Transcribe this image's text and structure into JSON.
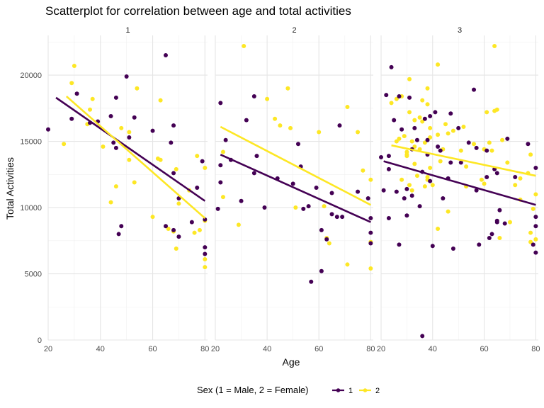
{
  "chart_data": {
    "type": "scatter",
    "title": "Scatterplot for correlation between age and total activities",
    "xlabel": "Age",
    "ylabel": "Total Activities",
    "xlim": [
      20,
      81
    ],
    "ylim": [
      0,
      23000
    ],
    "x_ticks": [
      20,
      40,
      60,
      80
    ],
    "y_ticks": [
      0,
      5000,
      10000,
      15000,
      20000
    ],
    "grid": true,
    "legend": {
      "title": "Sex (1 = Male, 2 = Female)",
      "position": "bottom",
      "entries": [
        {
          "label": "1",
          "color": "#440154"
        },
        {
          "label": "2",
          "color": "#fde725"
        }
      ]
    },
    "series_colors": {
      "1": "#440154",
      "2": "#fde725"
    },
    "panels": [
      {
        "label": "1",
        "points": {
          "1": [
            [
              20,
              15900
            ],
            [
              29,
              16700
            ],
            [
              31,
              18600
            ],
            [
              36,
              16400
            ],
            [
              39,
              16500
            ],
            [
              44,
              16900
            ],
            [
              45,
              14900
            ],
            [
              46,
              18300
            ],
            [
              46,
              14500
            ],
            [
              47,
              8000
            ],
            [
              48,
              8600
            ],
            [
              50,
              19900
            ],
            [
              51,
              15300
            ],
            [
              53,
              16800
            ],
            [
              60,
              15800
            ],
            [
              65,
              21500
            ],
            [
              65,
              8600
            ],
            [
              67,
              14900
            ],
            [
              68,
              16200
            ],
            [
              68,
              12600
            ],
            [
              68,
              8300
            ],
            [
              70,
              10700
            ],
            [
              70,
              7800
            ],
            [
              75,
              8900
            ],
            [
              77,
              11500
            ],
            [
              79,
              13500
            ],
            [
              80,
              9100
            ],
            [
              80,
              7000
            ],
            [
              80,
              6500
            ]
          ],
          "2": [
            [
              26,
              14800
            ],
            [
              29,
              19400
            ],
            [
              30,
              20700
            ],
            [
              35,
              16300
            ],
            [
              36,
              17400
            ],
            [
              37,
              18200
            ],
            [
              41,
              14600
            ],
            [
              44,
              10400
            ],
            [
              46,
              11600
            ],
            [
              48,
              16000
            ],
            [
              51,
              13600
            ],
            [
              51,
              15700
            ],
            [
              53,
              11900
            ],
            [
              54,
              19000
            ],
            [
              60,
              9300
            ],
            [
              62,
              13700
            ],
            [
              63,
              13600
            ],
            [
              63,
              18100
            ],
            [
              66,
              8400
            ],
            [
              68,
              8200
            ],
            [
              69,
              12900
            ],
            [
              70,
              10300
            ],
            [
              69,
              6900
            ],
            [
              74,
              11300
            ],
            [
              76,
              8100
            ],
            [
              77,
              13900
            ],
            [
              78,
              8300
            ],
            [
              80,
              13000
            ],
            [
              80,
              9000
            ],
            [
              80,
              6100
            ],
            [
              80,
              5500
            ]
          ]
        },
        "fits": {
          "1": [
            [
              23,
              18300
            ],
            [
              80,
              10500
            ]
          ],
          "2": [
            [
              27,
              18400
            ],
            [
              80,
              9200
            ]
          ]
        }
      },
      {
        "label": "2",
        "points": {
          "1": [
            [
              21,
              9900
            ],
            [
              22,
              11900
            ],
            [
              22,
              13200
            ],
            [
              22,
              17900
            ],
            [
              24,
              15100
            ],
            [
              26,
              13600
            ],
            [
              30,
              10500
            ],
            [
              32,
              16600
            ],
            [
              35,
              18400
            ],
            [
              35,
              12600
            ],
            [
              36,
              13900
            ],
            [
              39,
              10000
            ],
            [
              44,
              12200
            ],
            [
              50,
              11800
            ],
            [
              52,
              14800
            ],
            [
              53,
              13100
            ],
            [
              54,
              9900
            ],
            [
              56,
              10100
            ],
            [
              57,
              4400
            ],
            [
              59,
              11500
            ],
            [
              61,
              8300
            ],
            [
              61,
              5200
            ],
            [
              63,
              7600
            ],
            [
              65,
              11100
            ],
            [
              65,
              9500
            ],
            [
              67,
              9300
            ],
            [
              68,
              16200
            ],
            [
              69,
              9300
            ],
            [
              75,
              11200
            ],
            [
              79,
              10700
            ],
            [
              80,
              8100
            ],
            [
              80,
              9200
            ],
            [
              80,
              7300
            ]
          ],
          "2": [
            [
              23,
              14200
            ],
            [
              23,
              10800
            ],
            [
              29,
              8700
            ],
            [
              31,
              22200
            ],
            [
              40,
              18200
            ],
            [
              43,
              16700
            ],
            [
              45,
              16200
            ],
            [
              48,
              19000
            ],
            [
              49,
              16000
            ],
            [
              51,
              10000
            ],
            [
              60,
              15700
            ],
            [
              62,
              10100
            ],
            [
              63,
              7700
            ],
            [
              64,
              7300
            ],
            [
              71,
              17600
            ],
            [
              71,
              5700
            ],
            [
              75,
              15700
            ],
            [
              77,
              12800
            ],
            [
              80,
              12100
            ],
            [
              80,
              7400
            ],
            [
              80,
              5400
            ]
          ]
        },
        "fits": {
          "1": [
            [
              22,
              14000
            ],
            [
              80,
              8900
            ]
          ],
          "2": [
            [
              22,
              16100
            ],
            [
              80,
              10200
            ]
          ]
        }
      },
      {
        "label": "3",
        "points": {
          "1": [
            [
              20,
              13800
            ],
            [
              21,
              11300
            ],
            [
              22,
              18500
            ],
            [
              23,
              13900
            ],
            [
              23,
              12900
            ],
            [
              23,
              9200
            ],
            [
              24,
              20600
            ],
            [
              25,
              16600
            ],
            [
              26,
              11200
            ],
            [
              27,
              7200
            ],
            [
              27,
              18400
            ],
            [
              28,
              15900
            ],
            [
              29,
              10700
            ],
            [
              30,
              9400
            ],
            [
              30,
              11400
            ],
            [
              31,
              18300
            ],
            [
              32,
              10900
            ],
            [
              32,
              14400
            ],
            [
              33,
              16000
            ],
            [
              34,
              15100
            ],
            [
              35,
              10100
            ],
            [
              36,
              300
            ],
            [
              36,
              12700
            ],
            [
              37,
              16700
            ],
            [
              38,
              15100
            ],
            [
              38,
              14000
            ],
            [
              39,
              12000
            ],
            [
              39,
              16900
            ],
            [
              40,
              7100
            ],
            [
              41,
              17200
            ],
            [
              42,
              14600
            ],
            [
              43,
              14300
            ],
            [
              44,
              10700
            ],
            [
              46,
              12200
            ],
            [
              47,
              13400
            ],
            [
              47,
              17100
            ],
            [
              48,
              6900
            ],
            [
              50,
              16000
            ],
            [
              51,
              13400
            ],
            [
              54,
              14900
            ],
            [
              56,
              18900
            ],
            [
              57,
              11300
            ],
            [
              57,
              14500
            ],
            [
              58,
              7200
            ],
            [
              61,
              12300
            ],
            [
              61,
              14300
            ],
            [
              62,
              7700
            ],
            [
              63,
              8000
            ],
            [
              64,
              12900
            ],
            [
              65,
              8900
            ],
            [
              65,
              9000
            ],
            [
              65,
              12600
            ],
            [
              66,
              9800
            ],
            [
              68,
              8800
            ],
            [
              69,
              15200
            ],
            [
              72,
              12300
            ],
            [
              77,
              14800
            ],
            [
              79,
              7200
            ],
            [
              80,
              6600
            ],
            [
              80,
              13000
            ],
            [
              80,
              8600
            ],
            [
              80,
              9300
            ]
          ],
          "2": [
            [
              24,
              17900
            ],
            [
              26,
              18200
            ],
            [
              26,
              15000
            ],
            [
              27,
              15200
            ],
            [
              28,
              12100
            ],
            [
              28,
              18400
            ],
            [
              29,
              15400
            ],
            [
              30,
              13900
            ],
            [
              30,
              14200
            ],
            [
              30,
              14000
            ],
            [
              31,
              19700
            ],
            [
              31,
              17200
            ],
            [
              31,
              11700
            ],
            [
              32,
              15000
            ],
            [
              32,
              11300
            ],
            [
              33,
              13300
            ],
            [
              33,
              14600
            ],
            [
              33,
              16600
            ],
            [
              34,
              12400
            ],
            [
              35,
              14400
            ],
            [
              35,
              16800
            ],
            [
              36,
              18100
            ],
            [
              36,
              16500
            ],
            [
              37,
              11600
            ],
            [
              37,
              14900
            ],
            [
              38,
              12100
            ],
            [
              38,
              12300
            ],
            [
              38,
              17800
            ],
            [
              38,
              19000
            ],
            [
              39,
              15300
            ],
            [
              39,
              13000
            ],
            [
              39,
              16000
            ],
            [
              40,
              11700
            ],
            [
              42,
              20800
            ],
            [
              42,
              8400
            ],
            [
              42,
              15500
            ],
            [
              43,
              13500
            ],
            [
              44,
              14400
            ],
            [
              45,
              16300
            ],
            [
              46,
              9700
            ],
            [
              46,
              15600
            ],
            [
              48,
              15800
            ],
            [
              51,
              14300
            ],
            [
              52,
              16100
            ],
            [
              53,
              13100
            ],
            [
              53,
              11600
            ],
            [
              56,
              14800
            ],
            [
              59,
              12100
            ],
            [
              60,
              14400
            ],
            [
              60,
              11800
            ],
            [
              61,
              17200
            ],
            [
              62,
              14900
            ],
            [
              63,
              14300
            ],
            [
              64,
              22200
            ],
            [
              64,
              17300
            ],
            [
              65,
              17400
            ],
            [
              66,
              7700
            ],
            [
              67,
              15100
            ],
            [
              69,
              13400
            ],
            [
              70,
              8900
            ],
            [
              72,
              11700
            ],
            [
              74,
              12200
            ],
            [
              74,
              10600
            ],
            [
              77,
              12600
            ],
            [
              78,
              8100
            ],
            [
              78,
              7400
            ],
            [
              78,
              14000
            ],
            [
              79,
              9900
            ],
            [
              80,
              11000
            ],
            [
              80,
              7600
            ]
          ]
        },
        "fits": {
          "1": [
            [
              21,
              13500
            ],
            [
              80,
              10200
            ]
          ],
          "2": [
            [
              24,
              14700
            ],
            [
              80,
              12400
            ]
          ]
        }
      }
    ]
  }
}
